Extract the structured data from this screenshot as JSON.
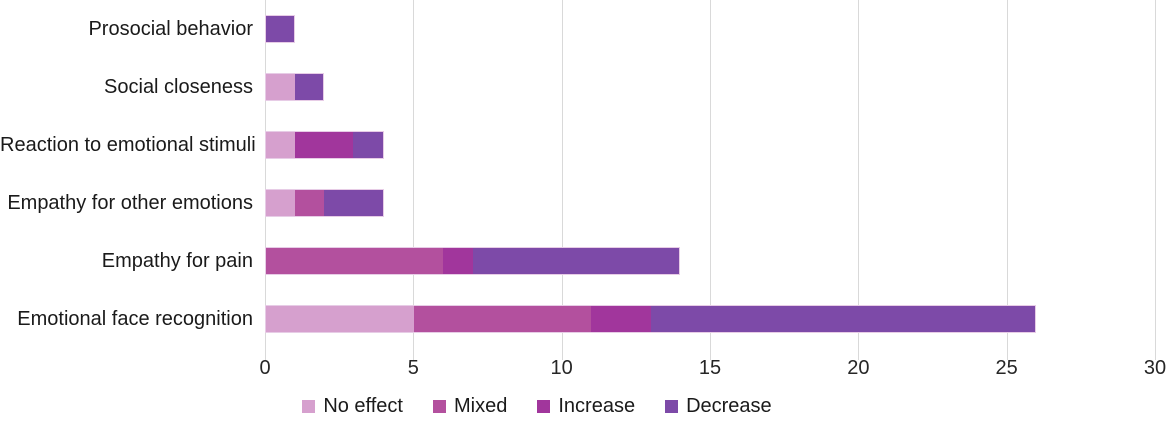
{
  "chart_data": {
    "type": "bar",
    "orientation": "horizontal",
    "stacked": true,
    "title": "",
    "xlabel": "",
    "ylabel": "",
    "xlim": [
      0,
      30
    ],
    "x_ticks": [
      0,
      5,
      10,
      15,
      20,
      25,
      30
    ],
    "grid": true,
    "legend_position": "bottom",
    "categories": [
      "Prosocial behavior",
      "Social closeness",
      "Reaction to emotional stimuli",
      "Empathy for other emotions",
      "Empathy for pain",
      "Emotional face recognition"
    ],
    "series": [
      {
        "name": "No effect",
        "color": "#d6a0ce",
        "values": [
          0,
          1,
          1,
          1,
          0,
          5
        ]
      },
      {
        "name": "Mixed",
        "color": "#b3509e",
        "values": [
          0,
          0,
          0,
          1,
          6,
          6
        ]
      },
      {
        "name": "Increase",
        "color": "#a1369c",
        "values": [
          0,
          0,
          2,
          0,
          1,
          2
        ]
      },
      {
        "name": "Decrease",
        "color": "#7d4aa8",
        "values": [
          1,
          1,
          1,
          2,
          7,
          13
        ]
      }
    ],
    "totals": [
      1,
      2,
      4,
      4,
      14,
      26
    ]
  },
  "styles": {
    "gridline_color": "#d9d9d9",
    "bar_border_color": "#e7cce6",
    "label_text_color": "#1a1a1a",
    "axis_text_color": "#262626",
    "background_color": "#ffffff"
  }
}
